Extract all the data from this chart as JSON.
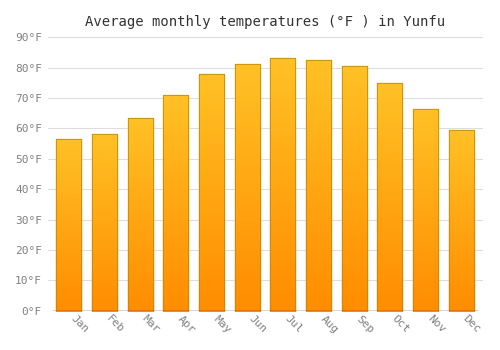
{
  "title": "Average monthly temperatures (°F ) in Yunfu",
  "months": [
    "Jan",
    "Feb",
    "Mar",
    "Apr",
    "May",
    "Jun",
    "Jul",
    "Aug",
    "Sep",
    "Oct",
    "Nov",
    "Dec"
  ],
  "values": [
    56.5,
    58.0,
    63.5,
    71.0,
    78.0,
    81.0,
    83.0,
    82.5,
    80.5,
    75.0,
    66.5,
    59.5
  ],
  "bar_color_top": "#FFC125",
  "bar_color_bottom": "#FF8C00",
  "bar_edge_color": "#b8860b",
  "ylim": [
    0,
    90
  ],
  "yticks": [
    0,
    10,
    20,
    30,
    40,
    50,
    60,
    70,
    80,
    90
  ],
  "ytick_labels": [
    "0°F",
    "10°F",
    "20°F",
    "30°F",
    "40°F",
    "50°F",
    "60°F",
    "70°F",
    "80°F",
    "90°F"
  ],
  "background_color": "#ffffff",
  "grid_color": "#dddddd",
  "title_fontsize": 10,
  "tick_fontsize": 8
}
